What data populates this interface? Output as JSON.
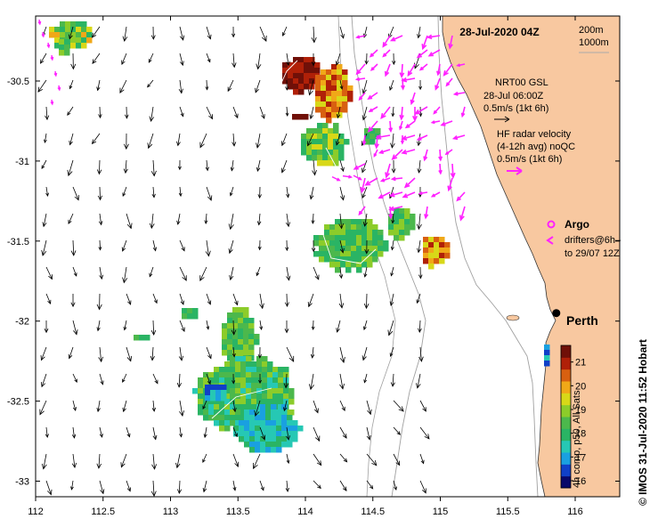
{
  "map": {
    "title": "28-Jul-2020 04Z",
    "isobaths": [
      "200m",
      "1000m"
    ],
    "lon_ticks": [
      "112",
      "112.5",
      "113",
      "113.5",
      "114",
      "114.5",
      "115",
      "115.5",
      "116"
    ],
    "lat_ticks": [
      "-30.5",
      "-31",
      "-31.5",
      "-32",
      "-32.5",
      "-33"
    ],
    "extent": {
      "lon": [
        112.0,
        116.3
      ],
      "lat": [
        -33.1,
        -30.1
      ]
    },
    "city": {
      "name": "Perth",
      "lon": 115.86,
      "lat": -31.95
    }
  },
  "legend": {
    "model_title": "NRT00 GSL",
    "model_time": "28-Jul 06:00Z",
    "model_scale": "0.5m/s (1kt 6h)",
    "radar_title": "HF radar velocity",
    "radar_sub": "(4-12h avg) noQC",
    "radar_scale": "0.5m/s (1kt 6h)",
    "argo": "Argo",
    "drifters_1": "drifters@6h–",
    "drifters_2": "to 29/07 12Z"
  },
  "colorbar": {
    "label": "4h comp, p50, All Sats",
    "ticks": [
      "16",
      "17",
      "18",
      "19",
      "20",
      "21"
    ],
    "range": [
      15.7,
      21.7
    ],
    "colors": [
      "#08086a",
      "#1040c8",
      "#1aa0e0",
      "#26c8b4",
      "#2ab464",
      "#4cb84c",
      "#8ccc2a",
      "#d8d818",
      "#f0a818",
      "#d86010",
      "#b02008",
      "#701008"
    ]
  },
  "credit": "© IMOS 31-Jul-2020 11:52 Hobart",
  "colors": {
    "land": "#f8c8a0",
    "radar": "#ff22ff",
    "isobath": "#a0a0a0"
  }
}
